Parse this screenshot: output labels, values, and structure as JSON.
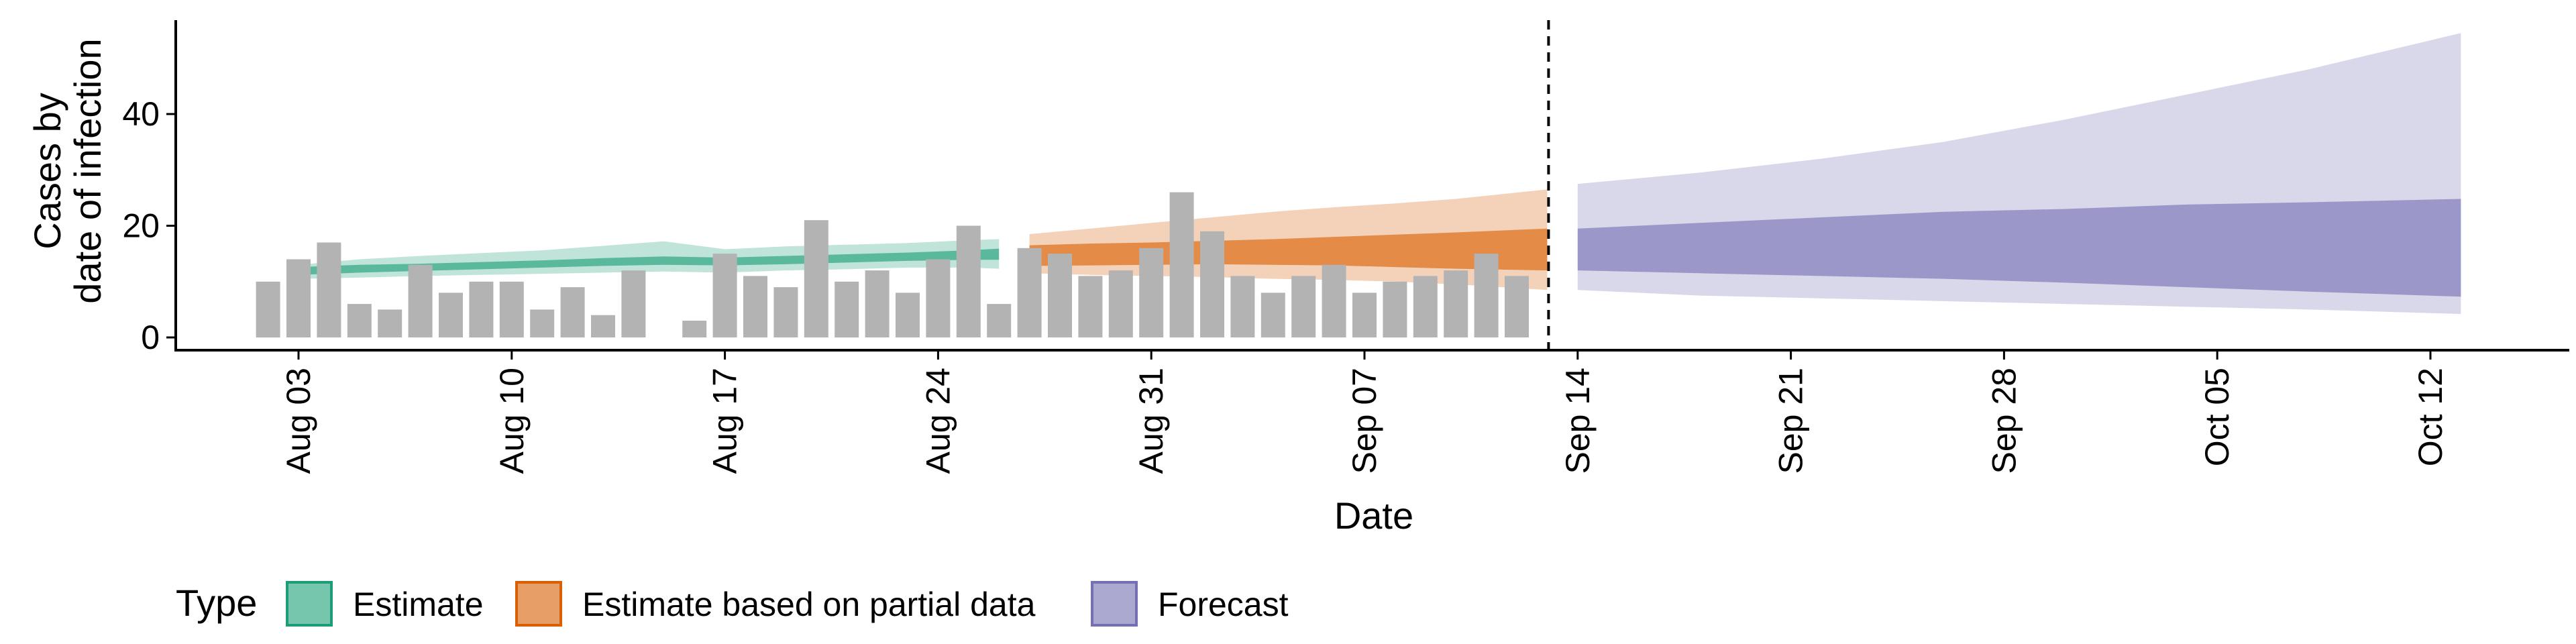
{
  "chart_data": {
    "type": "bar",
    "title": "",
    "xlabel": "Date",
    "ylabel": [
      "Cases by",
      "date of infection"
    ],
    "ylim": [
      0,
      57
    ],
    "yticks": [
      0,
      20,
      40
    ],
    "xticks": [
      "Aug 03",
      "Aug 10",
      "Aug 17",
      "Aug 24",
      "Aug 31",
      "Sep 07",
      "Sep 14",
      "Sep 21",
      "Sep 28",
      "Oct 05",
      "Oct 12"
    ],
    "forecast_start": "Sep 13",
    "grid": false,
    "legend": {
      "title": "Type",
      "placement": "bottom",
      "items": [
        {
          "label": "Estimate",
          "color": "#1b9e77"
        },
        {
          "label": "Estimate based on partial data",
          "color": "#d95f02"
        },
        {
          "label": "Forecast",
          "color": "#7570b3"
        }
      ]
    },
    "reported_cases": {
      "color": "#b3b3b3",
      "dates": [
        "Aug 02",
        "Aug 03",
        "Aug 04",
        "Aug 05",
        "Aug 06",
        "Aug 07",
        "Aug 08",
        "Aug 09",
        "Aug 10",
        "Aug 11",
        "Aug 12",
        "Aug 13",
        "Aug 14",
        "Aug 15",
        "Aug 16",
        "Aug 17",
        "Aug 18",
        "Aug 19",
        "Aug 20",
        "Aug 21",
        "Aug 22",
        "Aug 23",
        "Aug 24",
        "Aug 25",
        "Aug 26",
        "Aug 27",
        "Aug 28",
        "Aug 29",
        "Aug 30",
        "Aug 31",
        "Sep 01",
        "Sep 02",
        "Sep 03",
        "Sep 04",
        "Sep 05",
        "Sep 06",
        "Sep 07",
        "Sep 08",
        "Sep 09",
        "Sep 10",
        "Sep 11",
        "Sep 12",
        "Sep 13"
      ],
      "values": [
        10,
        14,
        17,
        6,
        5,
        13,
        8,
        10,
        10,
        5,
        9,
        4,
        12,
        0,
        3,
        15,
        11,
        9,
        21,
        10,
        12,
        8,
        14,
        20,
        6,
        16,
        15,
        11,
        12,
        16,
        26,
        19,
        11,
        8,
        11,
        13,
        8,
        10,
        11,
        12,
        15,
        11,
        0
      ]
    },
    "series": [
      {
        "name": "Estimate",
        "color": "#1b9e77",
        "dates": [
          "Aug 03",
          "Aug 05",
          "Aug 07",
          "Aug 09",
          "Aug 11",
          "Aug 13",
          "Aug 15",
          "Aug 17",
          "Aug 19",
          "Aug 21",
          "Aug 23",
          "Aug 25",
          "Aug 26"
        ],
        "upper90": [
          13.0,
          14.0,
          14.6,
          15.1,
          15.6,
          16.4,
          17.2,
          15.8,
          16.3,
          16.6,
          16.9,
          17.4,
          17.6
        ],
        "lower90": [
          10.5,
          10.7,
          11.0,
          11.2,
          11.4,
          11.6,
          11.8,
          11.6,
          12.0,
          12.2,
          12.5,
          12.5,
          12.3
        ],
        "upper50": [
          12.6,
          13.0,
          13.2,
          13.5,
          13.8,
          14.2,
          14.5,
          14.3,
          14.6,
          14.9,
          15.2,
          15.6,
          15.9
        ],
        "lower50": [
          11.2,
          11.6,
          11.9,
          12.2,
          12.5,
          12.8,
          13.0,
          12.9,
          13.1,
          13.4,
          13.7,
          13.9,
          13.9
        ]
      },
      {
        "name": "Estimate based on partial data",
        "color": "#d95f02",
        "dates": [
          "Aug 27",
          "Aug 29",
          "Aug 31",
          "Sep 02",
          "Sep 04",
          "Sep 06",
          "Sep 08",
          "Sep 10",
          "Sep 13"
        ],
        "upper90": [
          18.5,
          19.5,
          20.5,
          21.5,
          22.5,
          23.3,
          24.0,
          24.8,
          26.5
        ],
        "lower90": [
          11.5,
          11.2,
          11.0,
          10.8,
          10.5,
          10.3,
          10.0,
          9.5,
          8.5
        ],
        "upper50": [
          16.5,
          16.8,
          17.0,
          17.3,
          17.6,
          18.0,
          18.4,
          18.8,
          19.5
        ],
        "lower50": [
          12.8,
          12.9,
          13.0,
          13.1,
          13.0,
          12.9,
          12.6,
          12.3,
          12.0
        ]
      },
      {
        "name": "Forecast",
        "color": "#7570b3",
        "dates": [
          "Sep 14",
          "Sep 18",
          "Sep 22",
          "Sep 26",
          "Sep 30",
          "Oct 04",
          "Oct 08",
          "Oct 13"
        ],
        "upper90": [
          27.5,
          29.5,
          32.0,
          35.0,
          39.0,
          43.5,
          48.0,
          54.5
        ],
        "lower90": [
          8.5,
          7.5,
          7.0,
          6.5,
          6.0,
          5.5,
          5.0,
          4.2
        ],
        "upper50": [
          19.5,
          20.5,
          21.5,
          22.5,
          23.0,
          23.8,
          24.2,
          24.8
        ],
        "lower50": [
          12.0,
          11.5,
          11.0,
          10.5,
          9.8,
          9.0,
          8.2,
          7.3
        ]
      }
    ]
  }
}
